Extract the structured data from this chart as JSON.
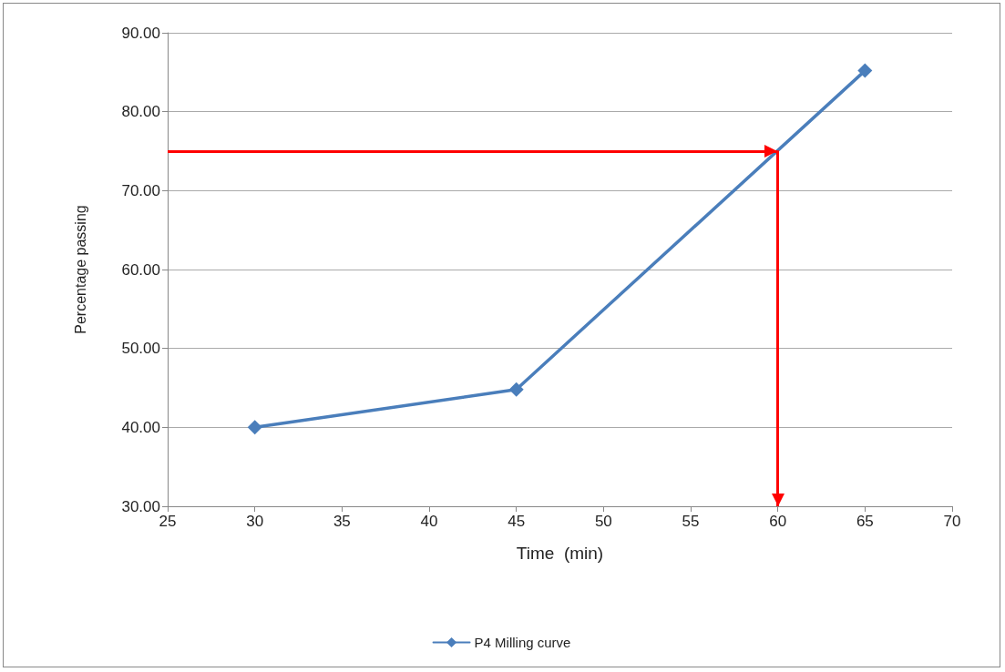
{
  "chart_data": {
    "type": "line",
    "xlabel": "Time  (min)",
    "ylabel": "Percentage passing",
    "x": [
      30,
      45,
      65
    ],
    "series": [
      {
        "name": "P4 Milling curve",
        "color": "#4a7ebb",
        "values": [
          40,
          44.8,
          85.2
        ]
      }
    ],
    "xlim": [
      25,
      70
    ],
    "xticks": [
      25,
      30,
      35,
      40,
      45,
      50,
      55,
      60,
      65,
      70
    ],
    "ylim": [
      30,
      90
    ],
    "yticks": [
      {
        "value": 30,
        "label": "30.00"
      },
      {
        "value": 40,
        "label": "40.00"
      },
      {
        "value": 50,
        "label": "50.00"
      },
      {
        "value": 60,
        "label": "60.00"
      },
      {
        "value": 70,
        "label": "70.00"
      },
      {
        "value": 80,
        "label": "80.00"
      },
      {
        "value": 90,
        "label": "90.00"
      }
    ],
    "ref_lines": [
      {
        "axis": "y",
        "value": 75,
        "color": "#ff0000"
      },
      {
        "axis": "x",
        "value": 60,
        "color": "#ff0000"
      }
    ],
    "grid": "y",
    "legend": "bottom",
    "marker": "diamond",
    "line_style": "solid"
  }
}
